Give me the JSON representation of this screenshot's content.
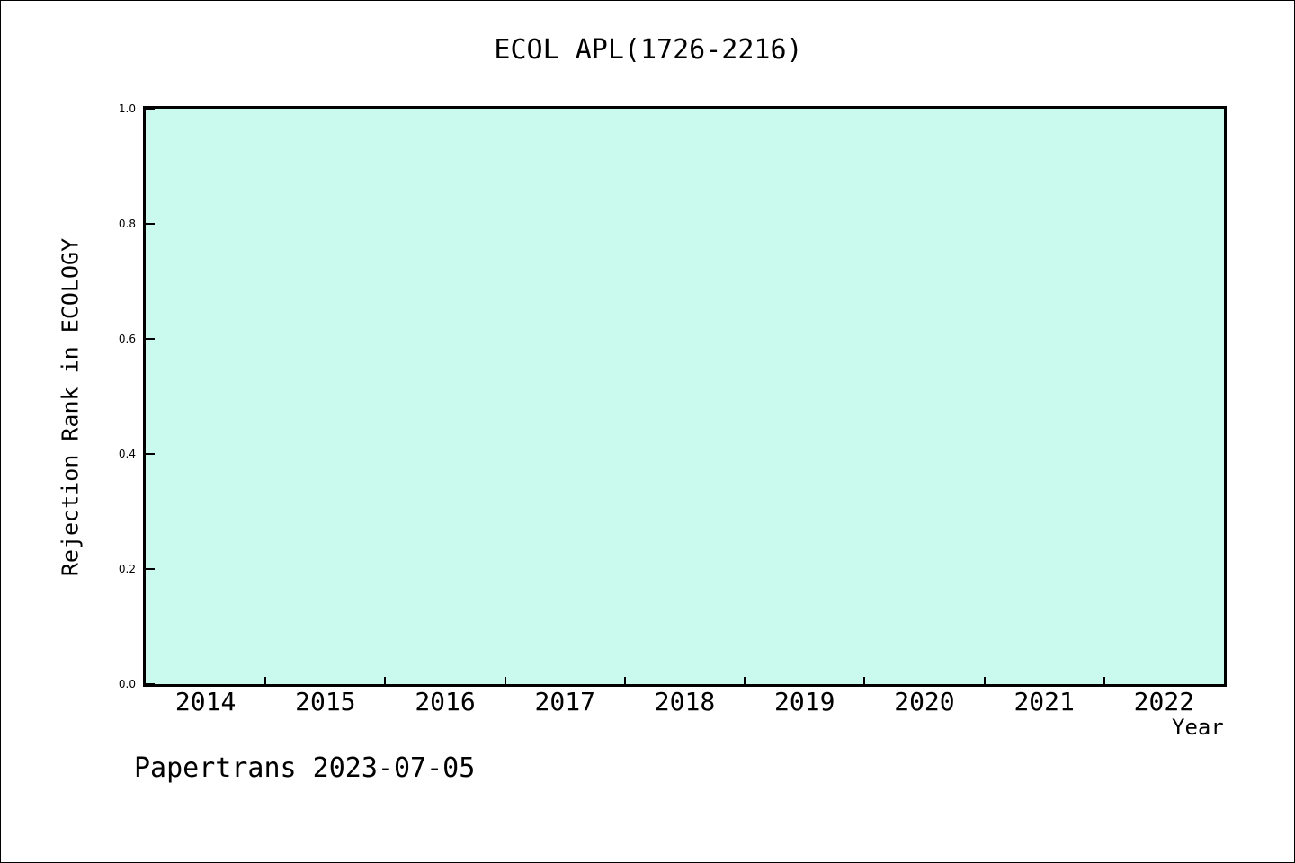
{
  "figure": {
    "watermark": "Papertrans 2023-07-05"
  },
  "chart_data": {
    "type": "line",
    "title": "ECOL APL(1726-2216)",
    "xlabel": "Year",
    "ylabel": "Rejection Rank in ECOLOGY",
    "x_tick_labels": [
      "2014",
      "2015",
      "2016",
      "2017",
      "2018",
      "2019",
      "2020",
      "2021",
      "2022"
    ],
    "y_tick_labels": [
      "0.0",
      "0.2",
      "0.4",
      "0.6",
      "0.8",
      "1.0"
    ],
    "xlim": [
      2013.5,
      2022.5
    ],
    "ylim": [
      0.0,
      1.0
    ],
    "series": [],
    "grid": false,
    "legend_visible": false,
    "x_ticks_between_labels": true,
    "tick_direction": "in",
    "plot_bg_color": "#cafaee",
    "axis_color": "#000000",
    "text_color": "#000000"
  }
}
